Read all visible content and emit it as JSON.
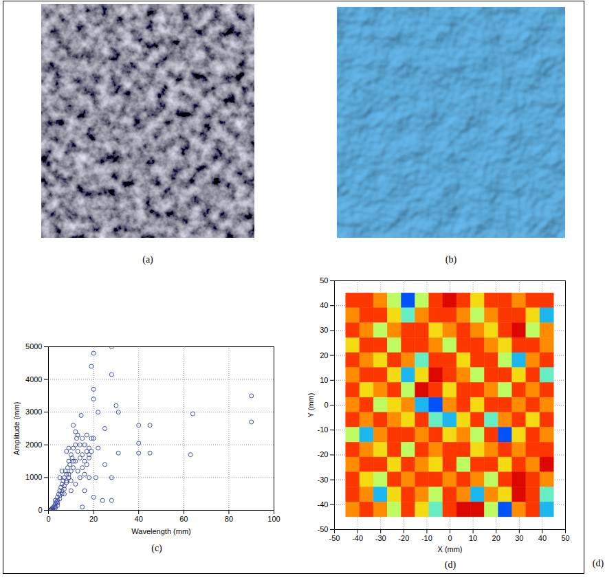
{
  "panel_labels": {
    "a": "(a)",
    "b": "(b)",
    "c": "(c)",
    "d": "(d)"
  },
  "corner_label": "(d)",
  "chart_data": [
    {
      "type": "scatter",
      "xlabel": "Wavelength (mm)",
      "ylabel": "Amplitude (mm)",
      "xlim": [
        0,
        100
      ],
      "xticks": [
        0,
        20,
        40,
        60,
        80,
        100
      ],
      "ylim": [
        0,
        5000
      ],
      "yticks": [
        0,
        1000,
        2000,
        3000,
        4000,
        5000
      ],
      "grid": true,
      "marker": "open circle",
      "color": "#2b3d9a",
      "x": [
        0.5,
        1,
        1,
        1.5,
        2,
        2,
        2.5,
        3,
        3,
        3,
        3.5,
        4,
        4,
        4,
        4.5,
        5,
        5,
        5,
        5.5,
        6,
        6,
        6,
        6.5,
        7,
        7,
        7,
        7.5,
        8,
        8,
        8,
        8.5,
        9,
        9,
        9,
        9.5,
        10,
        10,
        10,
        10.5,
        11,
        11,
        11,
        12,
        12,
        12,
        12,
        12.5,
        13,
        13,
        14,
        14,
        14,
        14.5,
        15,
        15,
        15,
        16,
        16,
        16,
        17,
        17,
        18,
        18,
        18,
        19,
        19,
        19,
        20,
        20,
        20,
        20,
        20,
        21,
        22,
        22,
        24,
        25,
        25,
        28,
        28,
        28,
        28,
        30,
        31,
        31,
        40,
        40,
        40,
        45,
        45,
        63,
        64,
        90,
        90,
        2,
        3,
        4,
        5,
        6,
        7,
        8,
        9,
        10,
        11,
        13,
        15,
        16,
        17,
        18
      ],
      "values": [
        2,
        5,
        20,
        50,
        40,
        80,
        120,
        100,
        200,
        300,
        250,
        150,
        300,
        400,
        500,
        450,
        600,
        1000,
        700,
        600,
        800,
        1200,
        900,
        500,
        750,
        1000,
        1200,
        900,
        1100,
        1800,
        1300,
        1000,
        1500,
        1900,
        1400,
        600,
        1200,
        1700,
        1600,
        1300,
        1900,
        2600,
        800,
        1500,
        2000,
        2400,
        2200,
        1800,
        2300,
        1000,
        1600,
        2000,
        2900,
        100,
        1700,
        2200,
        600,
        1500,
        2000,
        1800,
        2300,
        1000,
        1600,
        1900,
        1800,
        4400,
        2200,
        400,
        2200,
        3400,
        3700,
        4800,
        1000,
        1900,
        3000,
        300,
        1400,
        2500,
        300,
        1000,
        4150,
        5000,
        3200,
        1750,
        3000,
        1750,
        2050,
        2600,
        1750,
        2600,
        1700,
        2950,
        2700,
        3500,
        10,
        60,
        220,
        350,
        500,
        650,
        850,
        1100,
        900,
        1500,
        1200,
        1300,
        1100,
        1400,
        1700
      ]
    },
    {
      "type": "heatmap",
      "xlabel": "X (mm)",
      "ylabel": "Y (mm)",
      "xlim": [
        -50,
        50
      ],
      "xticks": [
        -50,
        -40,
        -30,
        -20,
        -10,
        0,
        10,
        20,
        30,
        40,
        50
      ],
      "ylim": [
        -50,
        50
      ],
      "yticks": [
        -50,
        -40,
        -30,
        -20,
        -10,
        0,
        10,
        20,
        30,
        40,
        50
      ],
      "grid": true,
      "zlim": [
        0,
        10
      ],
      "x_edges": [
        -45,
        -39,
        -33,
        -27,
        -21,
        -15,
        -9,
        -3,
        3,
        9,
        15,
        21,
        27,
        33,
        39,
        45
      ],
      "y_edges": [
        45,
        39,
        33,
        27,
        21,
        15,
        9,
        3,
        -3,
        -9,
        -15,
        -21,
        -27,
        -33,
        -39,
        -45
      ],
      "cells": [
        [
          8,
          8,
          7,
          5,
          2,
          5,
          8,
          9,
          8,
          6,
          8,
          8,
          7,
          8,
          8
        ],
        [
          7,
          8,
          8,
          6,
          4,
          7,
          8,
          8,
          7,
          5,
          7,
          8,
          8,
          6,
          3
        ],
        [
          8,
          7,
          5,
          7,
          8,
          8,
          6,
          7,
          8,
          7,
          6,
          8,
          9,
          5,
          7
        ],
        [
          6,
          8,
          8,
          5,
          8,
          8,
          7,
          5,
          8,
          8,
          7,
          6,
          8,
          8,
          7
        ],
        [
          8,
          7,
          6,
          8,
          7,
          4,
          8,
          8,
          6,
          8,
          8,
          5,
          3,
          7,
          8
        ],
        [
          7,
          8,
          8,
          6,
          3,
          6,
          9,
          8,
          7,
          5,
          8,
          8,
          6,
          8,
          4
        ],
        [
          8,
          6,
          7,
          8,
          5,
          9,
          8,
          6,
          8,
          8,
          7,
          5,
          8,
          7,
          8
        ],
        [
          7,
          8,
          5,
          6,
          7,
          3,
          2,
          7,
          8,
          6,
          8,
          8,
          7,
          8,
          7
        ],
        [
          8,
          7,
          8,
          7,
          6,
          8,
          4,
          3,
          6,
          8,
          4,
          7,
          8,
          6,
          8
        ],
        [
          5,
          3,
          7,
          8,
          8,
          7,
          8,
          6,
          7,
          5,
          8,
          2,
          6,
          8,
          7
        ],
        [
          8,
          7,
          6,
          8,
          5,
          8,
          7,
          8,
          8,
          6,
          7,
          8,
          7,
          8,
          8
        ],
        [
          7,
          8,
          8,
          6,
          8,
          7,
          6,
          8,
          5,
          8,
          8,
          6,
          8,
          7,
          9
        ],
        [
          8,
          6,
          5,
          8,
          7,
          8,
          8,
          7,
          8,
          7,
          5,
          8,
          9,
          8,
          7
        ],
        [
          8,
          7,
          3,
          6,
          8,
          7,
          5,
          8,
          7,
          3,
          7,
          6,
          9,
          8,
          4
        ],
        [
          7,
          8,
          7,
          5,
          8,
          6,
          4,
          8,
          9,
          9,
          5,
          2,
          7,
          8,
          3
        ]
      ]
    }
  ]
}
